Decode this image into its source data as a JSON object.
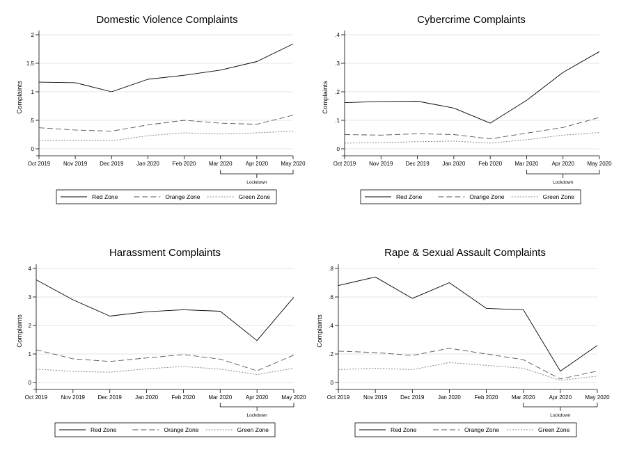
{
  "chart_data": [
    {
      "type": "line",
      "title": "Domestic Violence Complaints",
      "xlabel": "",
      "ylabel": "Complaints",
      "x": [
        "Oct 2019",
        "Nov 2019",
        "Dec 2019",
        "Jan 2020",
        "Feb 2020",
        "Mar 2020",
        "Apr 2020",
        "May 2020"
      ],
      "yticks": [
        "0",
        ".5",
        "1",
        "1.5",
        "2"
      ],
      "ylim": [
        0,
        2
      ],
      "grid": true,
      "legend_position": "bottom",
      "annotation": {
        "label": "Lockdown",
        "from": "Mar 2020",
        "to": "May 2020"
      },
      "series": [
        {
          "name": "Red Zone",
          "style": "solid",
          "values": [
            1.17,
            1.16,
            1.0,
            1.22,
            1.29,
            1.38,
            1.53,
            1.84
          ]
        },
        {
          "name": "Orange Zone",
          "style": "dashed",
          "values": [
            0.37,
            0.33,
            0.31,
            0.42,
            0.5,
            0.45,
            0.43,
            0.59
          ]
        },
        {
          "name": "Green Zone",
          "style": "dotted",
          "values": [
            0.14,
            0.15,
            0.14,
            0.23,
            0.28,
            0.26,
            0.28,
            0.31
          ]
        }
      ]
    },
    {
      "type": "line",
      "title": "Cybercrime Complaints",
      "xlabel": "",
      "ylabel": "Complaints",
      "x": [
        "Oct 2019",
        "Nov 2019",
        "Dec 2019",
        "Jan 2020",
        "Feb 2020",
        "Mar 2020",
        "Apr 2020",
        "May 2020"
      ],
      "yticks": [
        "0",
        ".1",
        ".2",
        ".3",
        ".4"
      ],
      "ylim": [
        0,
        0.4
      ],
      "grid": true,
      "legend_position": "bottom",
      "annotation": {
        "label": "Lockdown",
        "from": "Mar 2020",
        "to": "May 2020"
      },
      "series": [
        {
          "name": "Red Zone",
          "style": "solid",
          "values": [
            0.162,
            0.166,
            0.167,
            0.143,
            0.09,
            0.17,
            0.268,
            0.341
          ]
        },
        {
          "name": "Orange Zone",
          "style": "dashed",
          "values": [
            0.05,
            0.048,
            0.053,
            0.05,
            0.035,
            0.055,
            0.075,
            0.11
          ]
        },
        {
          "name": "Green Zone",
          "style": "dotted",
          "values": [
            0.02,
            0.022,
            0.025,
            0.027,
            0.02,
            0.032,
            0.048,
            0.057
          ]
        }
      ]
    },
    {
      "type": "line",
      "title": "Harassment Complaints",
      "xlabel": "",
      "ylabel": "Complaints",
      "x": [
        "Oct 2019",
        "Nov 2019",
        "Dec 2019",
        "Jan 2020",
        "Feb 2020",
        "Mar 2020",
        "Apr 2020",
        "May 2020"
      ],
      "yticks": [
        "0",
        "1",
        "2",
        "3",
        "4"
      ],
      "ylim": [
        0,
        4
      ],
      "grid": true,
      "legend_position": "bottom",
      "annotation": {
        "label": "Lockdown",
        "from": "Mar 2020",
        "to": "May 2020"
      },
      "series": [
        {
          "name": "Red Zone",
          "style": "solid",
          "values": [
            3.6,
            2.9,
            2.33,
            2.48,
            2.55,
            2.5,
            1.47,
            2.99
          ]
        },
        {
          "name": "Orange Zone",
          "style": "dashed",
          "values": [
            1.15,
            0.83,
            0.74,
            0.86,
            0.98,
            0.82,
            0.41,
            0.96
          ]
        },
        {
          "name": "Green Zone",
          "style": "dotted",
          "values": [
            0.47,
            0.39,
            0.36,
            0.48,
            0.56,
            0.47,
            0.28,
            0.5
          ]
        }
      ]
    },
    {
      "type": "line",
      "title": "Rape & Sexual Assault Complaints",
      "xlabel": "",
      "ylabel": "Complaints",
      "x": [
        "Oct 2019",
        "Nov 2019",
        "Dec 2019",
        "Jan 2020",
        "Feb 2020",
        "Mar 2020",
        "Apr 2020",
        "May 2020"
      ],
      "yticks": [
        "0",
        ".2",
        ".4",
        ".6",
        ".8"
      ],
      "ylim": [
        0,
        0.8
      ],
      "grid": true,
      "legend_position": "bottom",
      "annotation": {
        "label": "Lockdown",
        "from": "Mar 2020",
        "to": "May 2020"
      },
      "series": [
        {
          "name": "Red Zone",
          "style": "solid",
          "values": [
            0.68,
            0.74,
            0.59,
            0.7,
            0.52,
            0.51,
            0.08,
            0.26
          ]
        },
        {
          "name": "Orange Zone",
          "style": "dashed",
          "values": [
            0.22,
            0.21,
            0.19,
            0.24,
            0.2,
            0.16,
            0.025,
            0.08
          ]
        },
        {
          "name": "Green Zone",
          "style": "dotted",
          "values": [
            0.09,
            0.1,
            0.09,
            0.14,
            0.12,
            0.1,
            0.015,
            0.045
          ]
        }
      ]
    }
  ]
}
